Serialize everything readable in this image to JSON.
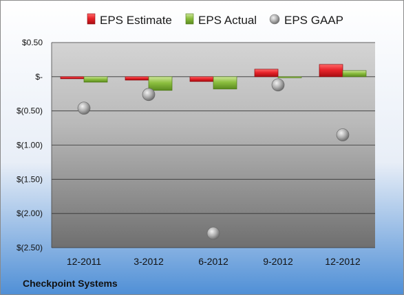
{
  "chart_data": {
    "type": "bar",
    "title": "",
    "xlabel": "",
    "ylabel": "",
    "categories": [
      "12-2011",
      "3-2012",
      "6-2012",
      "9-2012",
      "12-2012"
    ],
    "series": [
      {
        "name": "EPS Estimate",
        "kind": "bar",
        "color": "#e8232a",
        "values": [
          -0.03,
          -0.05,
          -0.07,
          0.11,
          0.18
        ]
      },
      {
        "name": "EPS Actual",
        "kind": "bar",
        "color": "#8cbf3f",
        "values": [
          -0.08,
          -0.2,
          -0.18,
          -0.01,
          0.09
        ]
      },
      {
        "name": "EPS GAAP",
        "kind": "marker",
        "color": "#a6a6a6",
        "values": [
          -0.46,
          -0.26,
          -2.29,
          -0.12,
          -0.85
        ]
      }
    ],
    "ylim": [
      -2.5,
      0.5
    ],
    "yticks": [
      0.5,
      0,
      -0.5,
      -1.0,
      -1.5,
      -2.0,
      -2.5
    ],
    "ytick_labels": [
      "$0.50",
      "$-",
      "$(0.50)",
      "$(1.00)",
      "$(1.50)",
      "$(2.00)",
      "$(2.50)"
    ],
    "grid": true,
    "legend_position": "top"
  },
  "footer": {
    "company": "Checkpoint Systems"
  },
  "colors": {
    "background_top": "#ffffff",
    "background_bottom": "#4f8fd6",
    "plot_top": "#d4d4d4",
    "plot_bottom": "#6f6f6f",
    "gridline": "#333333"
  }
}
